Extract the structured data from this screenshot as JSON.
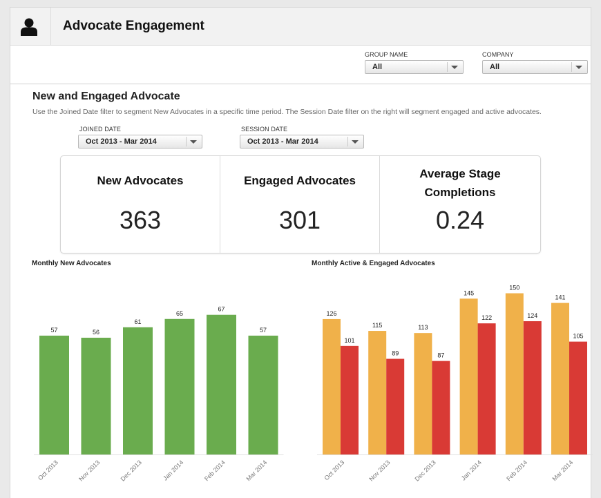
{
  "header": {
    "title": "Advocate Engagement",
    "icon": "user-icon"
  },
  "top_filters": [
    {
      "label": "GROUP NAME",
      "value": "All"
    },
    {
      "label": "COMPANY",
      "value": "All"
    }
  ],
  "section": {
    "title": "New and Engaged Advocate",
    "description": "Use the Joined Date filter to segment New Advocates in a specific time period.   The Session Date filter on the right will segment engaged and active advocates."
  },
  "date_filters": [
    {
      "label": "JOINED DATE",
      "value": "Oct 2013 - Mar 2014"
    },
    {
      "label": "SESSION DATE",
      "value": "Oct 2013 - Mar 2014"
    }
  ],
  "kpis": [
    {
      "label": "New Advocates",
      "value": "363"
    },
    {
      "label": "Engaged Advocates",
      "value": "301"
    },
    {
      "label": "Average Stage Completions",
      "value": "0.24"
    }
  ],
  "colors": {
    "green": "#6aac4e",
    "orange": "#f0b14a",
    "red": "#d93a35"
  },
  "chart_data": [
    {
      "type": "bar",
      "title": "Monthly New Advocates",
      "categories": [
        "Oct 2013",
        "Nov 2013",
        "Dec 2013",
        "Jan 2014",
        "Feb 2014",
        "Mar 2014"
      ],
      "values": [
        57,
        56,
        61,
        65,
        67,
        57
      ],
      "ylim": [
        0,
        90
      ],
      "grid": false,
      "data_labels": true
    },
    {
      "type": "bar",
      "title": "Monthly Active & Engaged Advocates",
      "categories": [
        "Oct 2013",
        "Nov 2013",
        "Dec 2013",
        "Jan 2014",
        "Feb 2014",
        "Mar 2014"
      ],
      "series": [
        {
          "values": [
            126,
            115,
            113,
            145,
            150,
            141
          ],
          "color": "#f0b14a"
        },
        {
          "values": [
            101,
            89,
            87,
            122,
            124,
            105
          ],
          "color": "#d93a35"
        }
      ],
      "ylim": [
        0,
        165
      ],
      "grid": false,
      "data_labels": true
    }
  ]
}
